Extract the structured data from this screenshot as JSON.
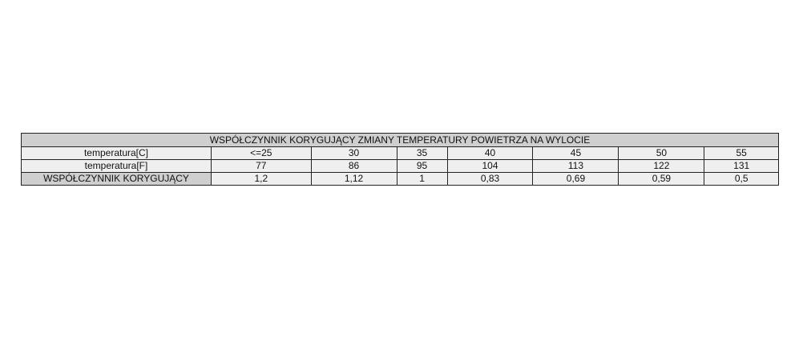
{
  "table": {
    "title": "WSPÓŁCZYNNIK KORYGUJĄCY ZMIANY TEMPERATURY POWIETRZA NA WYLOCIE",
    "rows": [
      {
        "label": "temperatura[C]",
        "values": [
          "<=25",
          "30",
          "35",
          "40",
          "45",
          "50",
          "55"
        ]
      },
      {
        "label": "temperatura[F]",
        "values": [
          "77",
          "86",
          "95",
          "104",
          "113",
          "122",
          "131"
        ]
      },
      {
        "label": "WSPÓŁCZYNNIK KORYGUJĄCY",
        "values": [
          "1,2",
          "1,12",
          "1",
          "0,83",
          "0,69",
          "0,59",
          "0,5"
        ]
      }
    ]
  }
}
